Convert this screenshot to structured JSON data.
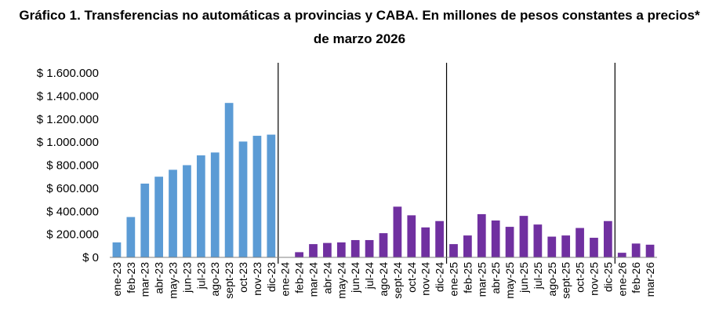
{
  "chart_data": {
    "type": "bar",
    "title_line1": "Gráfico 1. Transferencias no automáticas a provincias y CABA. En millones de pesos constantes a precios*",
    "title_line2": "de marzo 2026",
    "ylim": [
      0,
      1600000
    ],
    "yticks": [
      0,
      200000,
      400000,
      600000,
      800000,
      1000000,
      1200000,
      1400000,
      1600000
    ],
    "ytick_labels": [
      "$ 0",
      "$ 200.000",
      "$ 400.000",
      "$ 600.000",
      "$ 800.000",
      "$ 1.000.000",
      "$ 1.200.000",
      "$ 1.400.000",
      "$ 1.600.000"
    ],
    "categories": [
      "ene-23",
      "feb-23",
      "mar-23",
      "abr-23",
      "may-23",
      "jun-23",
      "jul-23",
      "ago-23",
      "sept-23",
      "oct-23",
      "nov-23",
      "dic-23",
      "ene-24",
      "feb-24",
      "mar-24",
      "abr-24",
      "may-24",
      "jun-24",
      "jul-24",
      "ago-24",
      "sept-24",
      "oct-24",
      "nov-24",
      "dic-24",
      "ene-25",
      "feb-25",
      "mar-25",
      "abr-25",
      "may-25",
      "jun-25",
      "jul-25",
      "ago-25",
      "sept-25",
      "oct-25",
      "nov-25",
      "dic-25",
      "ene-26",
      "feb-26",
      "mar-26"
    ],
    "values": [
      130000,
      350000,
      640000,
      700000,
      760000,
      800000,
      885000,
      910000,
      1340000,
      1005000,
      1055000,
      1065000,
      3000,
      45000,
      115000,
      125000,
      130000,
      150000,
      150000,
      210000,
      440000,
      365000,
      260000,
      315000,
      115000,
      190000,
      375000,
      320000,
      265000,
      360000,
      285000,
      180000,
      190000,
      255000,
      170000,
      315000,
      40000,
      120000,
      110000
    ],
    "bar_colors": [
      "#5b9bd5",
      "#5b9bd5",
      "#5b9bd5",
      "#5b9bd5",
      "#5b9bd5",
      "#5b9bd5",
      "#5b9bd5",
      "#5b9bd5",
      "#5b9bd5",
      "#5b9bd5",
      "#5b9bd5",
      "#5b9bd5",
      "#7030a0",
      "#7030a0",
      "#7030a0",
      "#7030a0",
      "#7030a0",
      "#7030a0",
      "#7030a0",
      "#7030a0",
      "#7030a0",
      "#7030a0",
      "#7030a0",
      "#7030a0",
      "#7030a0",
      "#7030a0",
      "#7030a0",
      "#7030a0",
      "#7030a0",
      "#7030a0",
      "#7030a0",
      "#7030a0",
      "#7030a0",
      "#7030a0",
      "#7030a0",
      "#7030a0",
      "#7030a0",
      "#7030a0",
      "#7030a0"
    ],
    "separators_after": [
      "dic-23",
      "dic-24",
      "dic-25"
    ]
  }
}
